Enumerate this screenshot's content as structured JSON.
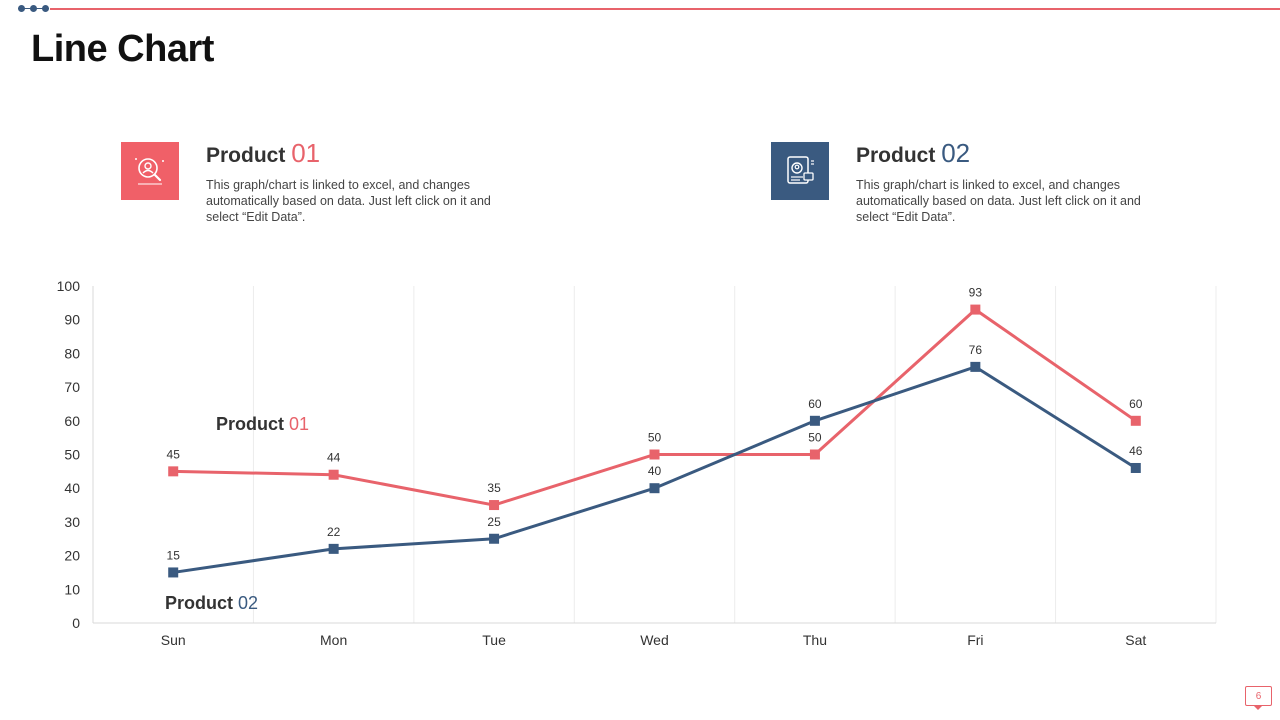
{
  "page": {
    "title": "Line Chart",
    "page_number": "6"
  },
  "products": [
    {
      "label": "Product",
      "number": "01",
      "description": "This graph/chart is linked to excel, and changes automatically based on data. Just left click on it and select “Edit Data”.",
      "icon": "user-search-icon",
      "color": "#e8636b"
    },
    {
      "label": "Product",
      "number": "02",
      "description": "This graph/chart is linked to excel, and changes automatically based on data. Just left click on it and select “Edit Data”.",
      "icon": "id-card-icon",
      "color": "#3a5a80"
    }
  ],
  "chart_data": {
    "type": "line",
    "categories": [
      "Sun",
      "Mon",
      "Tue",
      "Wed",
      "Thu",
      "Fri",
      "Sat"
    ],
    "ylim": [
      0,
      100
    ],
    "yticks": [
      0,
      10,
      20,
      30,
      40,
      50,
      60,
      70,
      80,
      90,
      100
    ],
    "series": [
      {
        "name": "Product 01",
        "label_main": "Product",
        "label_num": "01",
        "color": "#e8636b",
        "values": [
          45,
          44,
          35,
          50,
          50,
          93,
          60
        ]
      },
      {
        "name": "Product 02",
        "label_main": "Product",
        "label_num": "02",
        "color": "#3a5a80",
        "values": [
          15,
          22,
          25,
          40,
          60,
          76,
          46
        ]
      }
    ],
    "grid": "vertical",
    "data_labels": true
  }
}
